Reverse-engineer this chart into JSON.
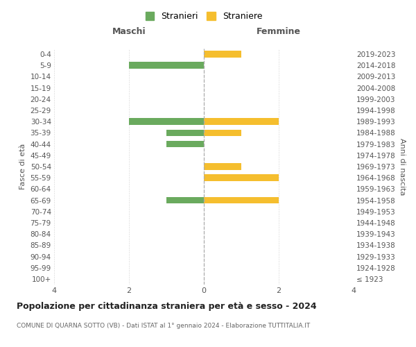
{
  "age_groups": [
    "100+",
    "95-99",
    "90-94",
    "85-89",
    "80-84",
    "75-79",
    "70-74",
    "65-69",
    "60-64",
    "55-59",
    "50-54",
    "45-49",
    "40-44",
    "35-39",
    "30-34",
    "25-29",
    "20-24",
    "15-19",
    "10-14",
    "5-9",
    "0-4"
  ],
  "birth_years": [
    "≤ 1923",
    "1924-1928",
    "1929-1933",
    "1934-1938",
    "1939-1943",
    "1944-1948",
    "1949-1953",
    "1954-1958",
    "1959-1963",
    "1964-1968",
    "1969-1973",
    "1974-1978",
    "1979-1983",
    "1984-1988",
    "1989-1993",
    "1994-1998",
    "1999-2003",
    "2004-2008",
    "2009-2013",
    "2014-2018",
    "2019-2023"
  ],
  "maschi": [
    0,
    0,
    0,
    0,
    0,
    0,
    0,
    1,
    0,
    0,
    0,
    0,
    1,
    1,
    2,
    0,
    0,
    0,
    0,
    2,
    0
  ],
  "femmine": [
    0,
    0,
    0,
    0,
    0,
    0,
    0,
    2,
    0,
    2,
    1,
    0,
    0,
    1,
    2,
    0,
    0,
    0,
    0,
    0,
    1
  ],
  "color_maschi": "#6aaa5e",
  "color_femmine": "#f5be2e",
  "title": "Popolazione per cittadinanza straniera per età e sesso - 2024",
  "subtitle": "COMUNE DI QUARNA SOTTO (VB) - Dati ISTAT al 1° gennaio 2024 - Elaborazione TUTTITALIA.IT",
  "xlabel_left": "Maschi",
  "xlabel_right": "Femmine",
  "ylabel_left": "Fasce di età",
  "ylabel_right": "Anni di nascita",
  "legend_maschi": "Stranieri",
  "legend_femmine": "Straniere",
  "xlim": 4,
  "background_color": "#ffffff",
  "grid_color": "#d0d0d0"
}
